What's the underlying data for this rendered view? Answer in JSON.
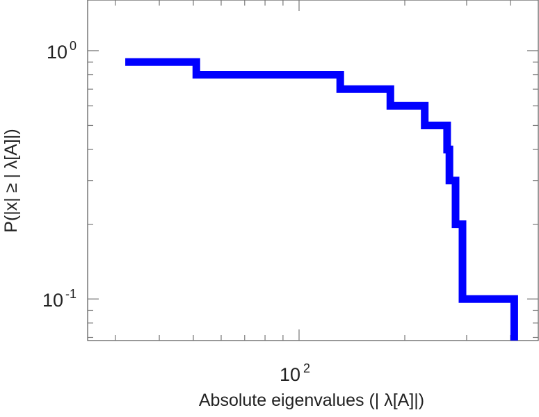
{
  "chart_data": {
    "type": "line",
    "style": "step",
    "xlabel": "Absolute eigenvalues (|      λ[A]|)",
    "ylabel": "P(|x|  ≥ | λ[A]|)",
    "xscale": "log",
    "yscale": "log",
    "xlim": [
      25,
      480
    ],
    "ylim": [
      0.068,
      1.6
    ],
    "xticks": [
      {
        "value": 100,
        "base": "10",
        "exp": "2"
      }
    ],
    "yticks": [
      {
        "value": 1,
        "base": "10",
        "exp": "0"
      },
      {
        "value": 0.1,
        "base": "10",
        "exp": "-1"
      }
    ],
    "grid": false,
    "series": [
      {
        "color": "#0000ff",
        "x": [
          32,
          51,
          51,
          131,
          131,
          182,
          182,
          228,
          228,
          264,
          264,
          268,
          268,
          279,
          279,
          292,
          292,
          410,
          410
        ],
        "y": [
          0.9,
          0.9,
          0.8,
          0.8,
          0.7,
          0.7,
          0.6,
          0.6,
          0.5,
          0.5,
          0.4,
          0.4,
          0.3,
          0.3,
          0.2,
          0.2,
          0.1,
          0.1,
          0.068
        ]
      }
    ]
  }
}
